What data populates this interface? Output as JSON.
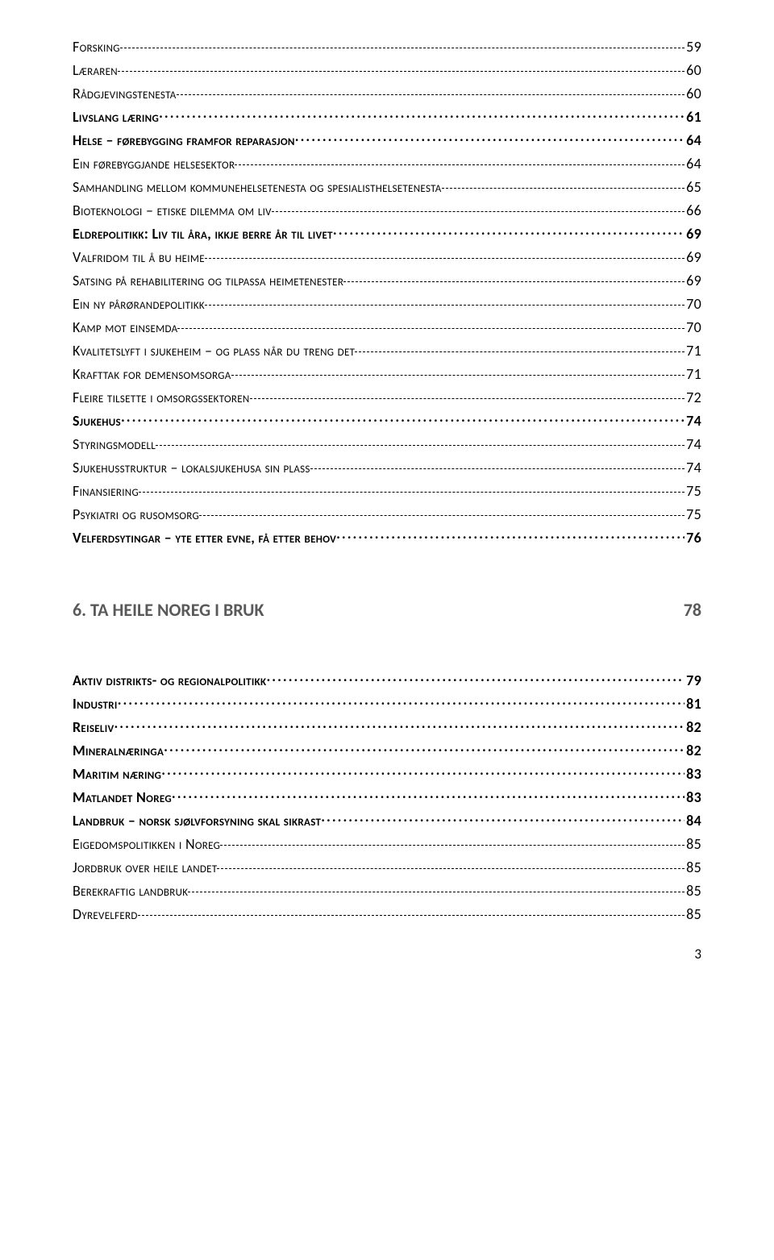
{
  "part1": [
    {
      "style": "sc",
      "leader": "dashes",
      "label": "Forsking",
      "page": "59"
    },
    {
      "style": "sc",
      "leader": "dashes",
      "label": "Læraren",
      "page": "60"
    },
    {
      "style": "sc",
      "leader": "dashes",
      "label": "Rådgjevingstenesta",
      "page": "60"
    },
    {
      "style": "bold",
      "leader": "dots",
      "label": "Livslang læring",
      "page": "61"
    },
    {
      "style": "bold",
      "leader": "dots",
      "label": "Helse – førebygging framfor reparasjon",
      "page": "64"
    },
    {
      "style": "sc",
      "leader": "dashes",
      "label": "Ein førebyggjande helsesektor",
      "page": "64"
    },
    {
      "style": "sc",
      "leader": "dashes",
      "label": "Samhandling mellom kommunehelsetenesta og spesialisthelsetenesta",
      "page": "65"
    },
    {
      "style": "sc",
      "leader": "dashes",
      "label": "Bioteknologi – etiske dilemma om liv",
      "page": "66"
    },
    {
      "style": "bold",
      "leader": "dots",
      "label": "Eldrepolitikk: Liv til åra, ikkje berre år til livet",
      "page": "69"
    },
    {
      "style": "sc",
      "leader": "dashes",
      "label": "Valfridom til å bu heime",
      "page": "69"
    },
    {
      "style": "sc",
      "leader": "dashes",
      "label": "Satsing på rehabilitering og tilpassa heimetenester",
      "page": "69"
    },
    {
      "style": "sc",
      "leader": "dashes",
      "label": "Ein ny pårørandepolitikk",
      "page": "70"
    },
    {
      "style": "sc",
      "leader": "dashes",
      "label": "Kamp mot einsemda",
      "page": "70"
    },
    {
      "style": "sc",
      "leader": "dashes",
      "label": "Kvalitetslyft i sjukeheim – og plass når du treng det",
      "page": "71"
    },
    {
      "style": "sc",
      "leader": "dashes",
      "label": "Krafttak for demensomsorga",
      "page": "71"
    },
    {
      "style": "sc",
      "leader": "dashes",
      "label": "Fleire tilsette i omsorgssektoren",
      "page": "72"
    },
    {
      "style": "bold",
      "leader": "dots",
      "label": "Sjukehus",
      "page": "74"
    },
    {
      "style": "sc",
      "leader": "dashes",
      "label": "Styringsmodell",
      "page": "74"
    },
    {
      "style": "sc",
      "leader": "dashes",
      "label": "Sjukehusstruktur – lokalsjukehusa sin plass",
      "page": "74"
    },
    {
      "style": "sc",
      "leader": "dashes",
      "label": "Finansiering",
      "page": "75"
    },
    {
      "style": "sc",
      "leader": "dashes",
      "label": "Psykiatri og rusomsorg",
      "page": "75"
    },
    {
      "style": "bold",
      "leader": "dots",
      "label": "Velferdsytingar – yte etter evne, få etter behov",
      "page": "76"
    }
  ],
  "section": {
    "label": "6. TA HEILE NOREG I BRUK",
    "page": "78"
  },
  "part2": [
    {
      "style": "bold",
      "leader": "dots",
      "label": "Aktiv distrikts- og regionalpolitikk",
      "page": "79"
    },
    {
      "style": "bold",
      "leader": "dots",
      "label": "Industri",
      "page": "81"
    },
    {
      "style": "bold",
      "leader": "dots",
      "label": "Reiseliv",
      "page": "82"
    },
    {
      "style": "bold",
      "leader": "dots",
      "label": "Mineralnæringa",
      "page": "82"
    },
    {
      "style": "bold",
      "leader": "dots",
      "label": "Maritim næring",
      "page": "83"
    },
    {
      "style": "bold",
      "leader": "dots",
      "label": "Matlandet Noreg",
      "page": "83"
    },
    {
      "style": "bold",
      "leader": "dots",
      "label": "Landbruk – norsk sjølvforsyning skal sikrast",
      "page": "84"
    },
    {
      "style": "sc",
      "leader": "dashes",
      "label": "Eigedomspolitikken i Noreg",
      "page": "85"
    },
    {
      "style": "sc",
      "leader": "dashes",
      "label": "Jordbruk over heile landet",
      "page": "85"
    },
    {
      "style": "sc",
      "leader": "dashes",
      "label": "Berekraftig landbruk",
      "page": "85"
    },
    {
      "style": "sc",
      "leader": "dashes",
      "label": "Dyrevelferd",
      "page": "85"
    }
  ],
  "footer_page": "3"
}
